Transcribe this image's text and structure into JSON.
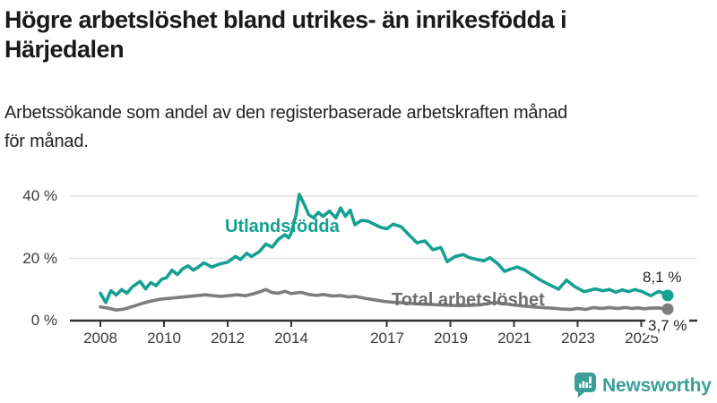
{
  "header": {
    "title_lines": [
      "Högre arbetslöshet bland utrikes- än inrikesfödda i",
      "Härjedalen"
    ],
    "subtitle_lines": [
      "Arbetssökande som andel av den registerbaserade arbetskraften månad",
      "för månad."
    ]
  },
  "branding": {
    "logo_text": "Newsworthy",
    "logo_icon": "newsworthy-bar-chart-speech-bubble-icon",
    "brand_color": "#3c9e96"
  },
  "chart_data": {
    "type": "line",
    "title": "Högre arbetslöshet bland utrikes- än inrikesfödda i Härjedalen",
    "subtitle": "Arbetssökande som andel av den registerbaserade arbetskraften månad för månad.",
    "unit": "%",
    "grid": "horizontal-only",
    "x_axis": {
      "range_years": [
        2008.0,
        2025.83
      ],
      "ticks": [
        {
          "label": "2008",
          "year": 2008
        },
        {
          "label": "2010",
          "year": 2010
        },
        {
          "label": "2012",
          "year": 2012
        },
        {
          "label": "2014",
          "year": 2014
        },
        {
          "label": "2017",
          "year": 2017
        },
        {
          "label": "2019",
          "year": 2019
        },
        {
          "label": "2021",
          "year": 2021
        },
        {
          "label": "2023",
          "year": 2023
        },
        {
          "label": "2025",
          "year": 2025
        }
      ]
    },
    "y_axis": {
      "range": [
        0,
        44
      ],
      "ticks": [
        {
          "label": "0 %",
          "value": 0
        },
        {
          "label": "20 %",
          "value": 20
        },
        {
          "label": "40 %",
          "value": 40
        }
      ]
    },
    "series": [
      {
        "name": "Utlandsfödda",
        "color": "#16a092",
        "end_label": "8,1 %",
        "end_value": 8.1,
        "points": [
          [
            2008.0,
            8.8
          ],
          [
            2008.17,
            5.8
          ],
          [
            2008.33,
            9.6
          ],
          [
            2008.5,
            8.2
          ],
          [
            2008.67,
            10.0
          ],
          [
            2008.83,
            8.8
          ],
          [
            2009.0,
            10.8
          ],
          [
            2009.25,
            12.6
          ],
          [
            2009.42,
            10.2
          ],
          [
            2009.58,
            12.2
          ],
          [
            2009.75,
            11.2
          ],
          [
            2009.92,
            13.2
          ],
          [
            2010.08,
            13.8
          ],
          [
            2010.25,
            16.2
          ],
          [
            2010.42,
            14.8
          ],
          [
            2010.58,
            16.6
          ],
          [
            2010.75,
            17.6
          ],
          [
            2010.92,
            16.2
          ],
          [
            2011.08,
            17.2
          ],
          [
            2011.25,
            18.6
          ],
          [
            2011.5,
            17.2
          ],
          [
            2011.75,
            18.2
          ],
          [
            2012.0,
            18.8
          ],
          [
            2012.25,
            20.6
          ],
          [
            2012.4,
            19.6
          ],
          [
            2012.6,
            21.6
          ],
          [
            2012.75,
            20.6
          ],
          [
            2013.0,
            22.2
          ],
          [
            2013.2,
            24.6
          ],
          [
            2013.4,
            23.6
          ],
          [
            2013.6,
            26.2
          ],
          [
            2013.8,
            27.6
          ],
          [
            2013.92,
            26.6
          ],
          [
            2014.0,
            28.2
          ],
          [
            2014.15,
            34.0
          ],
          [
            2014.25,
            40.6
          ],
          [
            2014.4,
            37.5
          ],
          [
            2014.55,
            34.0
          ],
          [
            2014.7,
            33.0
          ],
          [
            2014.85,
            34.8
          ],
          [
            2015.0,
            33.5
          ],
          [
            2015.2,
            35.2
          ],
          [
            2015.4,
            33.0
          ],
          [
            2015.55,
            36.2
          ],
          [
            2015.7,
            33.5
          ],
          [
            2015.85,
            35.5
          ],
          [
            2016.0,
            30.8
          ],
          [
            2016.2,
            32.2
          ],
          [
            2016.4,
            32.0
          ],
          [
            2016.6,
            31.0
          ],
          [
            2016.8,
            30.0
          ],
          [
            2017.0,
            29.5
          ],
          [
            2017.2,
            31.0
          ],
          [
            2017.45,
            30.2
          ],
          [
            2017.7,
            27.5
          ],
          [
            2017.95,
            25.0
          ],
          [
            2018.2,
            25.6
          ],
          [
            2018.45,
            22.8
          ],
          [
            2018.7,
            23.5
          ],
          [
            2018.9,
            18.9
          ],
          [
            2019.15,
            20.6
          ],
          [
            2019.4,
            21.2
          ],
          [
            2019.6,
            20.2
          ],
          [
            2019.85,
            19.6
          ],
          [
            2020.05,
            19.2
          ],
          [
            2020.25,
            20.2
          ],
          [
            2020.5,
            18.2
          ],
          [
            2020.7,
            15.8
          ],
          [
            2020.9,
            16.6
          ],
          [
            2021.1,
            17.2
          ],
          [
            2021.35,
            16.2
          ],
          [
            2021.6,
            14.5
          ],
          [
            2021.85,
            12.9
          ],
          [
            2022.1,
            11.6
          ],
          [
            2022.4,
            10.1
          ],
          [
            2022.65,
            13.0
          ],
          [
            2022.9,
            11.0
          ],
          [
            2023.2,
            9.3
          ],
          [
            2023.55,
            10.2
          ],
          [
            2023.8,
            9.6
          ],
          [
            2024.0,
            10.0
          ],
          [
            2024.2,
            9.1
          ],
          [
            2024.4,
            9.9
          ],
          [
            2024.6,
            9.3
          ],
          [
            2024.8,
            10.0
          ],
          [
            2025.0,
            9.4
          ],
          [
            2025.3,
            8.0
          ],
          [
            2025.55,
            9.4
          ],
          [
            2025.7,
            8.7
          ],
          [
            2025.83,
            8.1
          ]
        ]
      },
      {
        "name": "Total arbetslöshet",
        "color": "#7d7d7d",
        "end_label": "3,7 %",
        "end_value": 3.7,
        "points": [
          [
            2008.0,
            4.4
          ],
          [
            2008.25,
            4.0
          ],
          [
            2008.5,
            3.4
          ],
          [
            2008.75,
            3.7
          ],
          [
            2009.0,
            4.5
          ],
          [
            2009.3,
            5.5
          ],
          [
            2009.6,
            6.3
          ],
          [
            2009.9,
            6.9
          ],
          [
            2010.2,
            7.2
          ],
          [
            2010.5,
            7.5
          ],
          [
            2010.8,
            7.8
          ],
          [
            2011.0,
            8.0
          ],
          [
            2011.3,
            8.3
          ],
          [
            2011.55,
            8.0
          ],
          [
            2011.8,
            7.8
          ],
          [
            2012.0,
            8.0
          ],
          [
            2012.3,
            8.3
          ],
          [
            2012.55,
            8.0
          ],
          [
            2012.8,
            8.6
          ],
          [
            2013.0,
            9.2
          ],
          [
            2013.2,
            10.0
          ],
          [
            2013.4,
            9.0
          ],
          [
            2013.6,
            8.8
          ],
          [
            2013.8,
            9.4
          ],
          [
            2014.0,
            8.7
          ],
          [
            2014.3,
            9.1
          ],
          [
            2014.55,
            8.4
          ],
          [
            2014.8,
            8.1
          ],
          [
            2015.0,
            8.4
          ],
          [
            2015.3,
            7.9
          ],
          [
            2015.55,
            8.1
          ],
          [
            2015.8,
            7.6
          ],
          [
            2016.0,
            7.8
          ],
          [
            2016.3,
            7.2
          ],
          [
            2016.6,
            6.7
          ],
          [
            2016.9,
            6.2
          ],
          [
            2017.2,
            5.9
          ],
          [
            2017.5,
            5.7
          ],
          [
            2017.8,
            5.5
          ],
          [
            2018.1,
            5.3
          ],
          [
            2018.4,
            5.2
          ],
          [
            2018.7,
            5.0
          ],
          [
            2019.0,
            4.9
          ],
          [
            2019.3,
            4.8
          ],
          [
            2019.6,
            4.9
          ],
          [
            2019.9,
            5.0
          ],
          [
            2020.2,
            5.5
          ],
          [
            2020.4,
            5.8
          ],
          [
            2020.7,
            5.4
          ],
          [
            2021.0,
            5.0
          ],
          [
            2021.3,
            4.7
          ],
          [
            2021.6,
            4.4
          ],
          [
            2021.9,
            4.2
          ],
          [
            2022.2,
            4.0
          ],
          [
            2022.5,
            3.7
          ],
          [
            2022.8,
            3.6
          ],
          [
            2023.0,
            3.9
          ],
          [
            2023.25,
            3.6
          ],
          [
            2023.5,
            4.2
          ],
          [
            2023.75,
            3.9
          ],
          [
            2024.0,
            4.2
          ],
          [
            2024.25,
            3.9
          ],
          [
            2024.5,
            4.2
          ],
          [
            2024.7,
            3.9
          ],
          [
            2024.9,
            4.1
          ],
          [
            2025.1,
            3.8
          ],
          [
            2025.3,
            4.0
          ],
          [
            2025.55,
            4.1
          ],
          [
            2025.7,
            3.8
          ],
          [
            2025.83,
            3.7
          ]
        ]
      }
    ]
  }
}
